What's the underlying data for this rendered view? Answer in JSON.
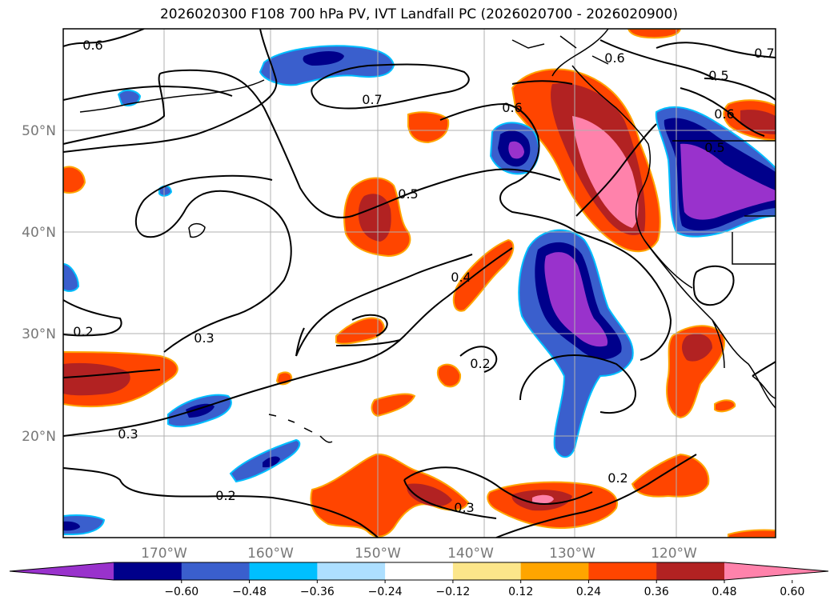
{
  "title": "2026020300 F108 700 hPa PV, IVT Landfall PC (2026020700 - 2026020900)",
  "latitude_labels": [
    "50°N",
    "40°N",
    "30°N",
    "20°N"
  ],
  "longitude_labels": [
    "170°W",
    "160°W",
    "150°W",
    "140°W",
    "130°W",
    "120°W"
  ],
  "contour_labels": [
    "0.6",
    "0.5",
    "0.6",
    "0.7",
    "0.6",
    "0.5",
    "0.6",
    "0.7",
    "0.5",
    "0.4",
    "0.3",
    "0.2",
    "0.2",
    "0.3",
    "0.2",
    "0.2",
    "0.3"
  ],
  "colorbar": {
    "ticks": [
      "−0.60",
      "−0.48",
      "−0.36",
      "−0.24",
      "−0.12",
      "0.12",
      "0.24",
      "0.36",
      "0.48",
      "0.60"
    ],
    "colors": [
      "#9932CC",
      "#00008B",
      "#3A5FCD",
      "#00BFFF",
      "#ADDFFF",
      "#FFFFFF",
      "#FCE68A",
      "#FFA500",
      "#FF4500",
      "#B22222",
      "#FF82AB"
    ]
  }
}
